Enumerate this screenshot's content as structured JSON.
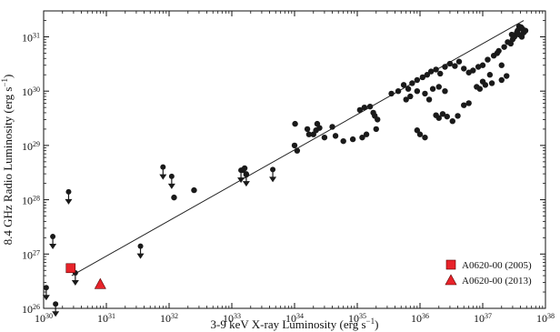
{
  "chart_data": {
    "type": "scatter",
    "xlabel": "3-9 keV X-ray Luminosity (erg s",
    "xlabel_exp": "−1",
    "xlabel_close": ")",
    "ylabel": "8.4 GHz Radio Luminosity (erg s",
    "ylabel_exp": "−1",
    "ylabel_close": ")",
    "x_scale": "log",
    "y_scale": "log",
    "xlim": [
      1e+30,
      1e+38
    ],
    "ylim": [
      1e+26,
      3e+31
    ],
    "x_ticks": [
      {
        "value": 1e+30,
        "base": "10",
        "exp": "30"
      },
      {
        "value": 1e+31,
        "base": "10",
        "exp": "31"
      },
      {
        "value": 1e+32,
        "base": "10",
        "exp": "32"
      },
      {
        "value": 1e+33,
        "base": "10",
        "exp": "33"
      },
      {
        "value": 1e+34,
        "base": "10",
        "exp": "34"
      },
      {
        "value": 1e+35,
        "base": "10",
        "exp": "35"
      },
      {
        "value": 1e+36,
        "base": "10",
        "exp": "36"
      },
      {
        "value": 1e+37,
        "base": "10",
        "exp": "37"
      },
      {
        "value": 1e+38,
        "base": "10",
        "exp": "38"
      }
    ],
    "y_ticks": [
      {
        "value": 1e+26,
        "base": "10",
        "exp": "26"
      },
      {
        "value": 1e+27,
        "base": "10",
        "exp": "27"
      },
      {
        "value": 1e+28,
        "base": "10",
        "exp": "28"
      },
      {
        "value": 1e+29,
        "base": "10",
        "exp": "29"
      },
      {
        "value": 1e+30,
        "base": "10",
        "exp": "30"
      },
      {
        "value": 1e+31,
        "base": "10",
        "exp": "31"
      }
    ],
    "fit_line": [
      {
        "x": 2.8e+30,
        "y": 4e+26
      },
      {
        "x": 4.5e+37,
        "y": 2e+31
      }
    ],
    "legend_position": "bottom-right",
    "colors": {
      "data": "#1a1a1a",
      "highlight": "#e8232a",
      "line": "#222222"
    },
    "series": [
      {
        "marker": "circle",
        "points": [
          [
            1.5e+33,
            3.5e+28
          ],
          [
            1.6e+33,
            3.8e+28
          ],
          [
            1.7e+33,
            2.9e+28
          ],
          [
            2.5e+32,
            1.5e+28
          ],
          [
            1.2e+32,
            1.1e+28
          ],
          [
            1.02e+34,
            2.5e+29
          ],
          [
            1e+34,
            1e+29
          ],
          [
            1.1e+34,
            8e+28
          ],
          [
            1.6e+34,
            2e+29
          ],
          [
            1.7e+34,
            1.6e+29
          ],
          [
            2.3e+34,
            2.5e+29
          ],
          [
            2.5e+34,
            2.1e+29
          ],
          [
            2.2e+34,
            1.9e+29
          ],
          [
            2e+34,
            1.6e+29
          ],
          [
            3e+34,
            1.4e+29
          ],
          [
            4e+34,
            2.2e+29
          ],
          [
            4.5e+34,
            1.5e+29
          ],
          [
            6e+34,
            1.2e+29
          ],
          [
            8.5e+34,
            1.3e+29
          ],
          [
            1.2e+35,
            1.4e+29
          ],
          [
            1.4e+35,
            1.6e+29
          ],
          [
            1.1e+35,
            4.5e+29
          ],
          [
            1.3e+35,
            5e+29
          ],
          [
            1.6e+35,
            5.2e+29
          ],
          [
            1.9e+35,
            3.5e+29
          ],
          [
            2.1e+35,
            3e+29
          ],
          [
            1.8e+35,
            4e+29
          ],
          [
            2e+35,
            2e+29
          ],
          [
            3.5e+35,
            9e+29
          ],
          [
            4.5e+35,
            1e+30
          ],
          [
            5.5e+35,
            1.3e+30
          ],
          [
            6.5e+35,
            1.1e+30
          ],
          [
            7.5e+35,
            1.4e+30
          ],
          [
            9e+35,
            1.6e+30
          ],
          [
            1.1e+36,
            1.8e+30
          ],
          [
            1.3e+36,
            2e+30
          ],
          [
            1.5e+36,
            2.3e+30
          ],
          [
            1.8e+36,
            2.5e+30
          ],
          [
            2.1e+36,
            2.1e+30
          ],
          [
            2.5e+36,
            2.8e+30
          ],
          [
            3e+36,
            3.2e+30
          ],
          [
            3.6e+36,
            2.9e+30
          ],
          [
            4.2e+36,
            3.5e+30
          ],
          [
            5e+36,
            2.6e+30
          ],
          [
            6e+36,
            2.2e+30
          ],
          [
            7e+36,
            2.4e+30
          ],
          [
            8.5e+36,
            2.8e+30
          ],
          [
            1e+37,
            3e+30
          ],
          [
            1.2e+37,
            3.8e+30
          ],
          [
            1.5e+37,
            4.5e+30
          ],
          [
            1.8e+37,
            5.5e+30
          ],
          [
            2.2e+37,
            6.5e+30
          ],
          [
            2.8e+37,
            7.5e+30
          ],
          [
            3.2e+37,
            1e+31
          ],
          [
            3.6e+37,
            1.3e+31
          ],
          [
            3.8e+37,
            1.55e+31
          ],
          [
            4.1e+37,
            1.5e+31
          ],
          [
            4.3e+37,
            1.4e+31
          ],
          [
            4.5e+37,
            1.2e+31
          ],
          [
            4.8e+37,
            1.3e+31
          ],
          [
            3e+37,
            9e+30
          ],
          [
            2.5e+37,
            8e+30
          ],
          [
            1.7e+37,
            5e+30
          ],
          [
            2e+37,
            3e+30
          ],
          [
            1.3e+37,
            2e+30
          ],
          [
            1e+37,
            1.5e+30
          ],
          [
            1.4e+37,
            1.4e+30
          ],
          [
            2.4e+37,
            1.9e+30
          ],
          [
            2e+37,
            1.6e+30
          ],
          [
            7e+35,
            8e+29
          ],
          [
            6e+35,
            7e+29
          ],
          [
            9e+35,
            1e+30
          ],
          [
            1.2e+36,
            9e+29
          ],
          [
            1.4e+36,
            7e+29
          ],
          [
            1.6e+36,
            1.1e+30
          ],
          [
            2e+36,
            1.2e+30
          ],
          [
            2.5e+36,
            1e+30
          ],
          [
            1.8e+36,
            3.6e+29
          ],
          [
            2e+36,
            3.2e+29
          ],
          [
            2.3e+36,
            3.8e+29
          ],
          [
            2.7e+36,
            3.4e+29
          ],
          [
            3.3e+36,
            2.8e+29
          ],
          [
            4e+36,
            3.5e+29
          ],
          [
            5e+36,
            5.5e+29
          ],
          [
            6e+36,
            6e+29
          ],
          [
            1e+36,
            1.6e+29
          ],
          [
            1.2e+36,
            1.4e+29
          ],
          [
            9e+35,
            1.9e+29
          ],
          [
            8e+36,
            1.2e+30
          ],
          [
            9e+36,
            1.1e+30
          ],
          [
            1.1e+37,
            1.3e+30
          ],
          [
            3.8e+37,
            1.1e+31
          ],
          [
            4.2e+37,
            1e+31
          ],
          [
            3.5e+37,
            1.2e+31
          ],
          [
            2.9e+37,
            1.1e+31
          ]
        ]
      },
      {
        "marker": "upper-limit",
        "points": [
          [
            1.1e+30,
            2.4e+26
          ],
          [
            1.4e+30,
            2.1e+27
          ],
          [
            1.55e+30,
            1.2e+26
          ],
          [
            2.5e+30,
            1.4e+28
          ],
          [
            3.2e+30,
            4.5e+26
          ],
          [
            3.5e+31,
            1.4e+27
          ],
          [
            8e+31,
            4e+28
          ],
          [
            1.1e+32,
            2.7e+28
          ],
          [
            1.4e+33,
            3.5e+28
          ],
          [
            1.7e+33,
            3e+28
          ],
          [
            4.5e+33,
            3.6e+28
          ]
        ]
      },
      {
        "name": "A0620-00 (2005)",
        "marker": "square",
        "color": "#e8232a",
        "points": [
          [
            2.7e+30,
            5.5e+26
          ]
        ]
      },
      {
        "name": "A0620-00 (2013)",
        "marker": "triangle",
        "color": "#e8232a",
        "points": [
          [
            8e+30,
            2.8e+26
          ]
        ]
      }
    ]
  }
}
